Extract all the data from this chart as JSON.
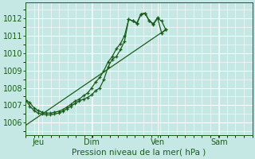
{
  "background_color": "#c5e8e5",
  "grid_color": "#b0d0cc",
  "line_color": "#1a5c1a",
  "title": "Pression niveau de la mer( hPa )",
  "ylabel_ticks": [
    1006,
    1007,
    1008,
    1009,
    1010,
    1011,
    1012
  ],
  "ylim": [
    1005.3,
    1012.9
  ],
  "xlim": [
    0.0,
    27.5
  ],
  "xtick_positions": [
    1.5,
    8.0,
    16.0,
    23.5
  ],
  "xtick_labels": [
    "Jeu",
    "Dim",
    "Ven",
    "Sam"
  ],
  "vline_positions": [
    1.5,
    8.0,
    16.0,
    23.5
  ],
  "series1": [
    [
      0.0,
      1007.3
    ],
    [
      0.5,
      1007.15
    ],
    [
      1.0,
      1006.85
    ],
    [
      1.5,
      1006.7
    ],
    [
      2.0,
      1006.6
    ],
    [
      2.5,
      1006.55
    ],
    [
      3.0,
      1006.55
    ],
    [
      3.5,
      1006.6
    ],
    [
      4.0,
      1006.65
    ],
    [
      4.5,
      1006.75
    ],
    [
      5.0,
      1006.9
    ],
    [
      5.5,
      1007.05
    ],
    [
      6.0,
      1007.25
    ],
    [
      6.5,
      1007.35
    ],
    [
      7.0,
      1007.55
    ],
    [
      7.5,
      1007.7
    ],
    [
      8.0,
      1008.0
    ],
    [
      8.5,
      1008.35
    ],
    [
      9.0,
      1008.6
    ],
    [
      9.5,
      1009.0
    ],
    [
      10.0,
      1009.5
    ],
    [
      10.5,
      1009.8
    ],
    [
      11.0,
      1010.25
    ],
    [
      11.5,
      1010.55
    ],
    [
      12.0,
      1011.0
    ],
    [
      12.5,
      1011.95
    ],
    [
      13.0,
      1011.85
    ],
    [
      13.5,
      1011.75
    ],
    [
      14.0,
      1012.25
    ],
    [
      14.5,
      1012.3
    ],
    [
      15.0,
      1011.85
    ],
    [
      15.5,
      1011.65
    ],
    [
      16.0,
      1012.0
    ],
    [
      16.5,
      1011.85
    ],
    [
      17.0,
      1011.35
    ]
  ],
  "series2": [
    [
      0.0,
      1007.3
    ],
    [
      0.5,
      1006.95
    ],
    [
      1.0,
      1006.7
    ],
    [
      1.5,
      1006.55
    ],
    [
      2.0,
      1006.5
    ],
    [
      2.5,
      1006.45
    ],
    [
      3.0,
      1006.45
    ],
    [
      3.5,
      1006.5
    ],
    [
      4.0,
      1006.55
    ],
    [
      4.5,
      1006.65
    ],
    [
      5.0,
      1006.8
    ],
    [
      5.5,
      1006.95
    ],
    [
      6.0,
      1007.1
    ],
    [
      6.5,
      1007.25
    ],
    [
      7.0,
      1007.35
    ],
    [
      7.5,
      1007.45
    ],
    [
      8.0,
      1007.6
    ],
    [
      8.5,
      1007.85
    ],
    [
      9.0,
      1008.0
    ],
    [
      9.5,
      1008.5
    ],
    [
      10.0,
      1009.2
    ],
    [
      10.5,
      1009.65
    ],
    [
      11.0,
      1009.8
    ],
    [
      11.5,
      1010.2
    ],
    [
      12.0,
      1010.7
    ],
    [
      12.5,
      1011.95
    ],
    [
      13.0,
      1011.85
    ],
    [
      13.5,
      1011.7
    ],
    [
      14.0,
      1012.25
    ],
    [
      14.5,
      1012.3
    ],
    [
      15.0,
      1011.85
    ],
    [
      15.5,
      1011.7
    ],
    [
      16.0,
      1012.05
    ],
    [
      16.5,
      1011.15
    ],
    [
      17.0,
      1011.35
    ]
  ],
  "series3_linear": [
    [
      0.0,
      1005.85
    ],
    [
      17.0,
      1011.35
    ]
  ]
}
